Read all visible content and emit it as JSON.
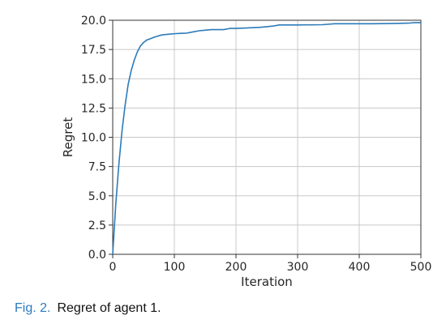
{
  "chart_data": {
    "type": "line",
    "xlabel": "Iteration",
    "ylabel": "Regret",
    "xlim": [
      0,
      500
    ],
    "ylim": [
      0,
      20
    ],
    "xticks": [
      0,
      100,
      200,
      300,
      400,
      500
    ],
    "xtick_labels": [
      "0",
      "100",
      "200",
      "300",
      "400",
      "500"
    ],
    "yticks": [
      0,
      2.5,
      5,
      7.5,
      10,
      12.5,
      15,
      17.5,
      20
    ],
    "ytick_labels": [
      "0.0",
      "2.5",
      "5.0",
      "7.5",
      "10.0",
      "12.5",
      "15.0",
      "17.5",
      "20.0"
    ],
    "grid": true,
    "series": [
      {
        "color": "#2b7bba",
        "x": [
          0,
          5,
          10,
          15,
          20,
          25,
          30,
          35,
          40,
          45,
          50,
          55,
          60,
          65,
          70,
          80,
          90,
          100,
          110,
          120,
          130,
          140,
          150,
          160,
          180,
          190,
          200,
          220,
          240,
          260,
          270,
          280,
          300,
          340,
          360,
          380,
          420,
          450,
          480,
          490,
          500
        ],
        "y": [
          0,
          4.3,
          7.7,
          10.5,
          12.7,
          14.5,
          15.7,
          16.6,
          17.3,
          17.8,
          18.1,
          18.3,
          18.4,
          18.5,
          18.6,
          18.75,
          18.8,
          18.85,
          18.88,
          18.9,
          19.0,
          19.1,
          19.15,
          19.2,
          19.2,
          19.3,
          19.3,
          19.35,
          19.4,
          19.5,
          19.6,
          19.6,
          19.6,
          19.62,
          19.7,
          19.7,
          19.7,
          19.72,
          19.75,
          19.8,
          19.8
        ]
      }
    ]
  },
  "caption": {
    "label": "Fig. 2.",
    "text": "Regret of agent 1."
  }
}
